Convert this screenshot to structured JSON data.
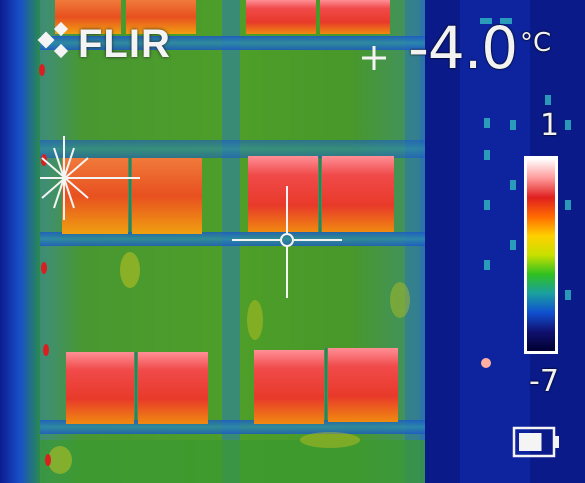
{
  "brand": {
    "logo_text": "FLIR"
  },
  "measurement": {
    "value": "-4.0",
    "unit": "°C",
    "crosshair_icon": "spot-meter-icon"
  },
  "scale": {
    "max_label": "1",
    "min_label": "-7",
    "palette": [
      "#ffffff",
      "#ff9a9a",
      "#e02020",
      "#ff6a00",
      "#ffd000",
      "#c8e000",
      "#30c020",
      "#1aa0a0",
      "#1050d0",
      "#101070",
      "#000030"
    ]
  },
  "battery": {
    "icon": "battery-icon",
    "level": 0.75
  },
  "colors": {
    "overlay_text": "#f2f2f2",
    "background_cold": "#0a1880",
    "wall_warm": "#4a9a28"
  }
}
